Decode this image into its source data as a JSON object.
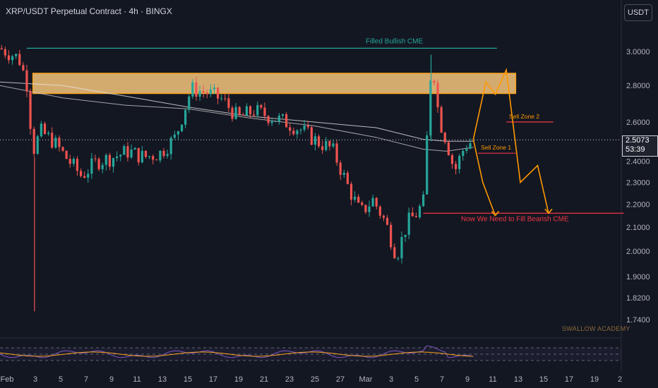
{
  "header": {
    "title": "XRP/USDT Perpetual Contract · 4h · BINGX",
    "currency_button": "USDT",
    "last_price": "2.5073",
    "countdown": "53:39"
  },
  "watermark": "SWALLOW ACADEMY",
  "colors": {
    "background": "#131722",
    "up": "#26a69a",
    "down": "#ef5350",
    "zone": "#ffcc80",
    "zone_border": "#f7a21b",
    "projection": "#ff9800",
    "cme_bullish": "#26a69a",
    "cme_bearish": "#f23645",
    "ma_fast": "#c8c8c8",
    "ma_slow": "#e6e6e6",
    "rsi": "#7e57c2",
    "rsi_ma": "#f7a21b"
  },
  "chart_data": {
    "type": "candlestick",
    "symbol": "XRP/USDT Perpetual Contract",
    "timeframe": "4h",
    "exchange": "BINGX",
    "y_axis": {
      "scale": "log",
      "ticks": [
        "3.0000",
        "2.8000",
        "2.6000",
        "2.4000",
        "2.3000",
        "2.2000",
        "2.1000",
        "2.0000",
        "1.9000",
        "1.8200",
        "1.7400"
      ],
      "range": [
        1.7,
        3.15
      ]
    },
    "x_axis": {
      "ticks": [
        "Feb",
        "3",
        "5",
        "7",
        "9",
        "11",
        "13",
        "15",
        "17",
        "19",
        "21",
        "23",
        "25",
        "27",
        "Mar",
        "3",
        "5",
        "7",
        "9",
        "11",
        "13",
        "15",
        "17",
        "19",
        "2"
      ]
    },
    "price_path": [
      [
        0,
        3.02
      ],
      [
        1.2,
        2.96
      ],
      [
        1.7,
        2.82
      ],
      [
        2.1,
        2.45
      ],
      [
        2.6,
        2.55
      ],
      [
        3.4,
        2.5
      ],
      [
        4.2,
        2.42
      ],
      [
        5.2,
        2.33
      ],
      [
        6.2,
        2.4
      ],
      [
        7.2,
        2.42
      ],
      [
        8.2,
        2.45
      ],
      [
        9.2,
        2.42
      ],
      [
        10.2,
        2.44
      ],
      [
        11.2,
        2.52
      ],
      [
        12.2,
        2.78
      ],
      [
        13.2,
        2.76
      ],
      [
        14.2,
        2.72
      ],
      [
        15.2,
        2.62
      ],
      [
        16.2,
        2.66
      ],
      [
        17.2,
        2.63
      ],
      [
        18.2,
        2.6
      ],
      [
        19.2,
        2.56
      ],
      [
        20.2,
        2.5
      ],
      [
        21.2,
        2.46
      ],
      [
        22.2,
        2.28
      ],
      [
        23,
        2.16
      ],
      [
        23.8,
        2.22
      ],
      [
        24.6,
        2.12
      ],
      [
        25.3,
        1.98
      ],
      [
        26,
        2.12
      ],
      [
        26.6,
        2.16
      ],
      [
        27.1,
        2.22
      ],
      [
        27.4,
        2.85
      ],
      [
        27.7,
        2.86
      ],
      [
        28,
        2.62
      ],
      [
        28.5,
        2.5
      ],
      [
        29,
        2.35
      ],
      [
        29.5,
        2.45
      ],
      [
        29.9,
        2.5
      ],
      [
        30.2,
        2.48
      ]
    ],
    "last_price": 2.5073,
    "moving_averages": [
      {
        "kind": "fast",
        "points": [
          [
            0,
            2.8
          ],
          [
            4,
            2.73
          ],
          [
            8,
            2.69
          ],
          [
            12,
            2.67
          ],
          [
            16,
            2.62
          ],
          [
            20,
            2.58
          ],
          [
            24,
            2.52
          ],
          [
            27,
            2.46
          ],
          [
            28.5,
            2.45
          ],
          [
            30.2,
            2.47
          ]
        ]
      },
      {
        "kind": "slow",
        "points": [
          [
            0,
            2.82
          ],
          [
            4,
            2.8
          ],
          [
            8,
            2.74
          ],
          [
            12,
            2.68
          ],
          [
            16,
            2.63
          ],
          [
            20,
            2.6
          ],
          [
            24,
            2.57
          ],
          [
            27,
            2.51
          ],
          [
            28.5,
            2.5
          ],
          [
            30.2,
            2.5
          ]
        ]
      }
    ],
    "zones": [
      {
        "label": "",
        "type": "resistance_box",
        "x_start": 2.1,
        "x_end": 32.9,
        "y_low": 2.755,
        "y_high": 2.87
      }
    ],
    "levels": [
      {
        "label": "Filled Bullish CME",
        "price": 3.02,
        "x_start": 1.7,
        "x_end": 31.7,
        "color": "#26a69a"
      },
      {
        "label": "Sell Zone 2",
        "price": 2.6,
        "x_start": 32.3,
        "x_end": 35.3,
        "color": "#f23645"
      },
      {
        "label": "Sell Zone 1",
        "price": 2.44,
        "x_start": 30.5,
        "x_end": 32.9,
        "color": "#f23645"
      },
      {
        "label": "Now We Need to Fill Bearish CME",
        "price": 2.16,
        "x_start": 27.0,
        "x_end": 39.8,
        "color": "#f23645"
      }
    ],
    "projection": [
      [
        30.2,
        2.51
      ],
      [
        31.0,
        2.82
      ],
      [
        31.6,
        2.75
      ],
      [
        32.3,
        2.89
      ],
      [
        33.2,
        2.3
      ],
      [
        34.3,
        2.38
      ],
      [
        35.0,
        2.16
      ]
    ],
    "projection_alt": [
      [
        30.2,
        2.51
      ],
      [
        30.8,
        2.3
      ],
      [
        31.6,
        2.15
      ]
    ],
    "rsi": {
      "bands": [
        70,
        50,
        30
      ]
    }
  }
}
